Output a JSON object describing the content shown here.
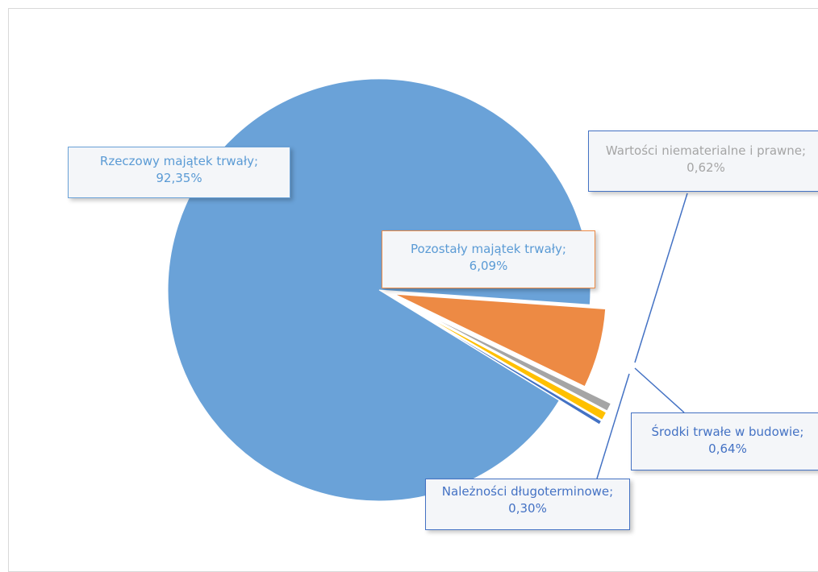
{
  "chart_data": {
    "type": "pie",
    "slices": [
      {
        "label": "Rzeczowy majątek trwały",
        "value": 92.35,
        "value_text": "92,35%",
        "color": "#6aa2d8"
      },
      {
        "label": "Pozostały majątek trwały",
        "value": 6.09,
        "value_text": "6,09%",
        "color": "#ed8a44"
      },
      {
        "label": "Wartości niematerialne i prawne",
        "value": 0.62,
        "value_text": "0,62%",
        "color": "#a5a5a5"
      },
      {
        "label": "Środki trwałe w budowie",
        "value": 0.64,
        "value_text": "0,64%",
        "color": "#ffc000"
      },
      {
        "label": "Należności długoterminowe",
        "value": 0.3,
        "value_text": "0,30%",
        "color": "#4472c4"
      }
    ],
    "exploded": true,
    "legend": "none",
    "data_labels": "callouts"
  }
}
